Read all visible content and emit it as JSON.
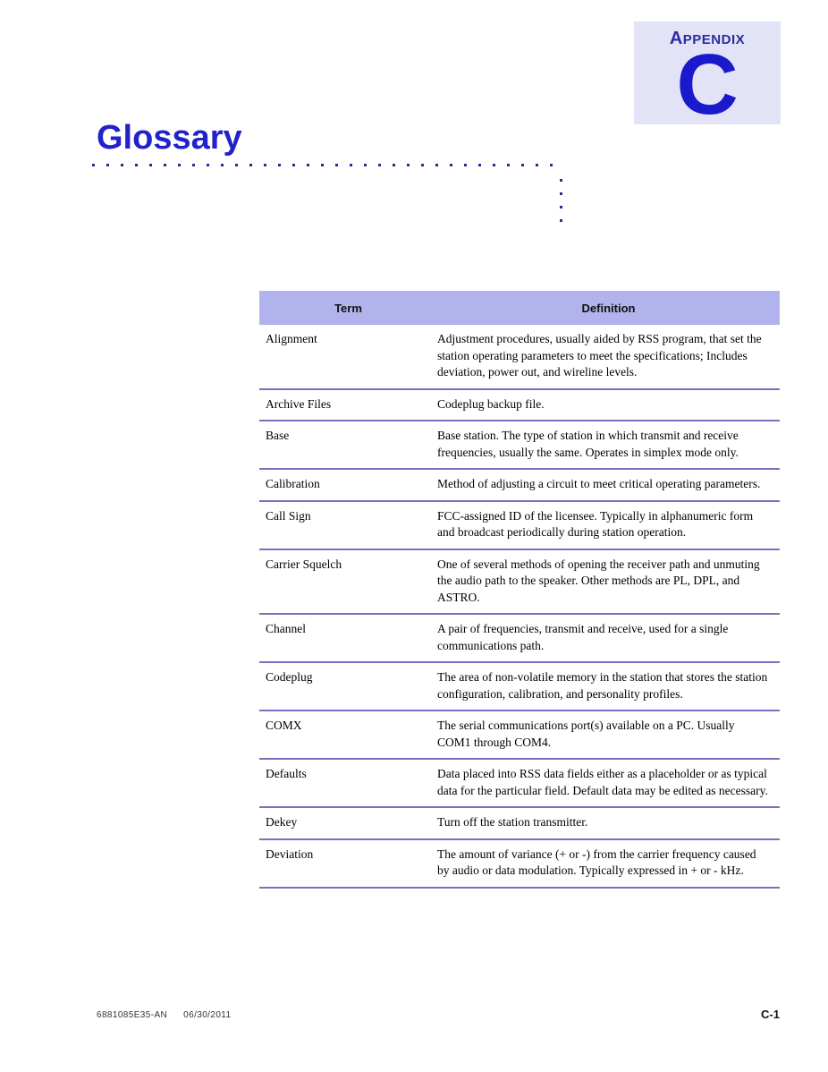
{
  "appendix": {
    "label": "APPENDIX",
    "letter": "C"
  },
  "page": {
    "title": "Glossary",
    "footer": {
      "doc_number": "6881085E35-AN",
      "date": "06/30/2011",
      "page_number": "C-1"
    }
  },
  "colors": {
    "title_blue": "#2222CC",
    "appendix_letter_blue": "#1A1ACC",
    "appendix_label_blue": "#2B2BA0",
    "appendix_box_bg": "#E3E3F7",
    "table_header_bg": "#B2B2EC",
    "row_separator": "#7272BE",
    "dot_navy": "#2B2B8C",
    "body_text": "#000000",
    "footer_text": "#333333"
  },
  "table": {
    "headers": [
      "Term",
      "Definition"
    ],
    "rows": [
      {
        "term": "Alignment",
        "definition": "Adjustment procedures, usually aided by RSS program, that set the station operating parameters to meet the specifications; Includes deviation, power out, and wireline levels."
      },
      {
        "term": "Archive Files",
        "definition": "Codeplug backup file."
      },
      {
        "term": "Base",
        "definition": "Base station. The type of station in which transmit and receive frequencies, usually the same. Operates in simplex mode only."
      },
      {
        "term": "Calibration",
        "definition": "Method of adjusting a circuit to meet critical operating parameters."
      },
      {
        "term": "Call Sign",
        "definition": "FCC-assigned ID of the licensee. Typically in alphanumeric form and broadcast periodically during station operation."
      },
      {
        "term": "Carrier Squelch",
        "definition": "One of several methods of opening the receiver path and unmuting the audio path to the speaker. Other methods are PL, DPL, and ASTRO."
      },
      {
        "term": "Channel",
        "definition": "A pair of frequencies, transmit and receive, used for a single communications path."
      },
      {
        "term": "Codeplug",
        "definition": "The area of non-volatile memory in the station that stores the station configuration, calibration, and personality profiles."
      },
      {
        "term": "COMX",
        "definition": "The serial communications port(s) available on a PC. Usually COM1 through COM4."
      },
      {
        "term": "Defaults",
        "definition": "Data placed into RSS data fields either as a placeholder or as typical data for the particular field. Default data may be edited as necessary."
      },
      {
        "term": "Dekey",
        "definition": "Turn off the station transmitter."
      },
      {
        "term": "Deviation",
        "definition": "The amount of variance (+ or -) from the carrier frequency caused by audio or data modulation. Typically expressed in + or - kHz."
      }
    ]
  }
}
